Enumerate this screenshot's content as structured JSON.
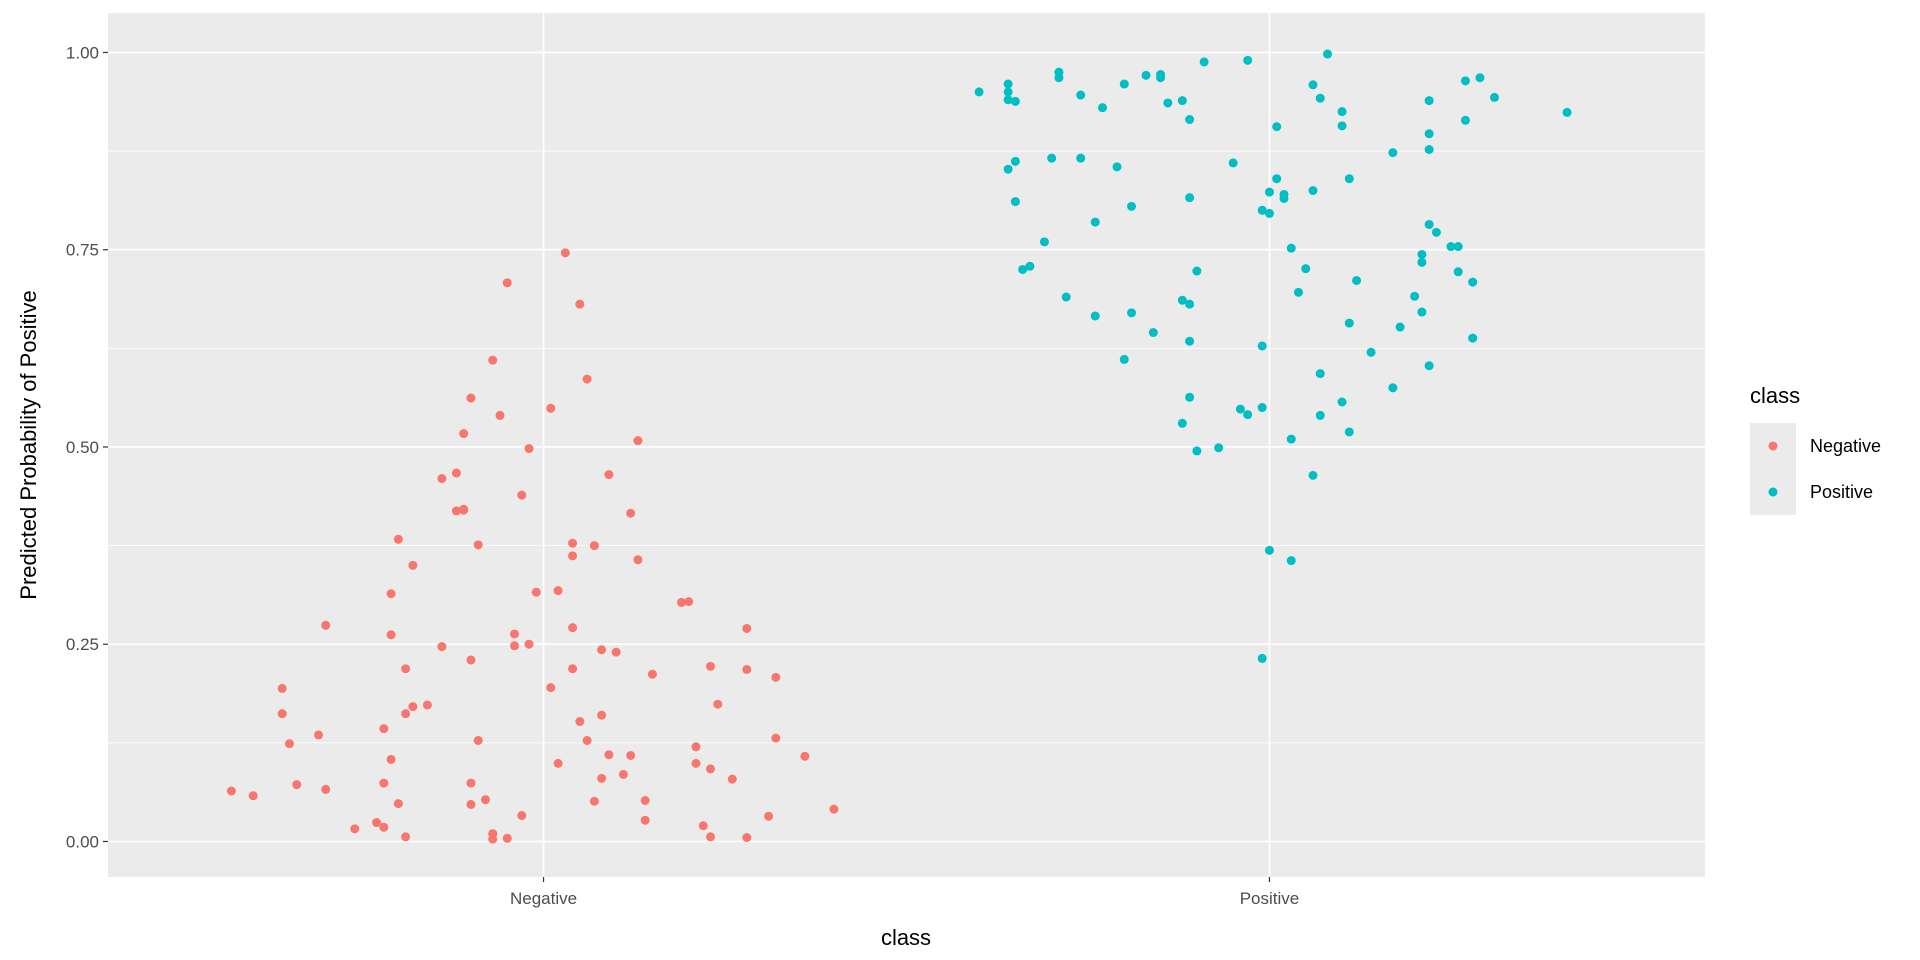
{
  "colors": {
    "panel_background": "#EBEBEB",
    "grid_major": "#FFFFFF",
    "Negative": "#F8766D",
    "Positive": "#00BFC4"
  },
  "chart_data": {
    "type": "scatter",
    "geom": "jitter",
    "xlabel": "class",
    "ylabel": "Predicted Probability of Positive",
    "categories": [
      "Negative",
      "Positive"
    ],
    "ylim": [
      -0.045,
      1.05
    ],
    "y_ticks": [
      "0.00",
      "0.25",
      "0.50",
      "0.75",
      "1.00"
    ],
    "grid": true,
    "legend": {
      "title": "class",
      "position": "right",
      "entries": [
        "Negative",
        "Positive"
      ]
    },
    "series": [
      {
        "name": "Negative",
        "points": [
          [
            0.57,
            0.064
          ],
          [
            0.6,
            0.058
          ],
          [
            0.64,
            0.194
          ],
          [
            0.64,
            0.162
          ],
          [
            0.65,
            0.124
          ],
          [
            0.66,
            0.072
          ],
          [
            0.69,
            0.135
          ],
          [
            0.7,
            0.066
          ],
          [
            0.7,
            0.274
          ],
          [
            0.74,
            0.016
          ],
          [
            0.77,
            0.024
          ],
          [
            0.78,
            0.074
          ],
          [
            0.78,
            0.143
          ],
          [
            0.78,
            0.018
          ],
          [
            0.79,
            0.314
          ],
          [
            0.79,
            0.104
          ],
          [
            0.79,
            0.262
          ],
          [
            0.8,
            0.048
          ],
          [
            0.8,
            0.383
          ],
          [
            0.81,
            0.219
          ],
          [
            0.81,
            0.162
          ],
          [
            0.81,
            0.006
          ],
          [
            0.82,
            0.171
          ],
          [
            0.82,
            0.35
          ],
          [
            0.84,
            0.173
          ],
          [
            0.86,
            0.46
          ],
          [
            0.86,
            0.247
          ],
          [
            0.88,
            0.419
          ],
          [
            0.88,
            0.467
          ],
          [
            0.89,
            0.421
          ],
          [
            0.89,
            0.42
          ],
          [
            0.89,
            0.517
          ],
          [
            0.9,
            0.23
          ],
          [
            0.9,
            0.074
          ],
          [
            0.9,
            0.047
          ],
          [
            0.9,
            0.562
          ],
          [
            0.91,
            0.128
          ],
          [
            0.91,
            0.376
          ],
          [
            0.92,
            0.053
          ],
          [
            0.93,
            0.61
          ],
          [
            0.93,
            0.01
          ],
          [
            0.93,
            0.003
          ],
          [
            0.94,
            0.54
          ],
          [
            0.95,
            0.708
          ],
          [
            0.95,
            0.004
          ],
          [
            0.96,
            0.248
          ],
          [
            0.96,
            0.263
          ],
          [
            0.97,
            0.439
          ],
          [
            0.97,
            0.033
          ],
          [
            0.98,
            0.498
          ],
          [
            0.98,
            0.25
          ],
          [
            0.99,
            0.316
          ],
          [
            1.01,
            0.195
          ],
          [
            1.01,
            0.549
          ],
          [
            1.02,
            0.099
          ],
          [
            1.02,
            0.318
          ],
          [
            1.03,
            0.746
          ],
          [
            1.04,
            0.378
          ],
          [
            1.04,
            0.362
          ],
          [
            1.04,
            0.219
          ],
          [
            1.04,
            0.271
          ],
          [
            1.05,
            0.681
          ],
          [
            1.05,
            0.152
          ],
          [
            1.06,
            0.586
          ],
          [
            1.06,
            0.128
          ],
          [
            1.07,
            0.051
          ],
          [
            1.07,
            0.375
          ],
          [
            1.08,
            0.08
          ],
          [
            1.08,
            0.243
          ],
          [
            1.08,
            0.16
          ],
          [
            1.09,
            0.11
          ],
          [
            1.09,
            0.465
          ],
          [
            1.1,
            0.24
          ],
          [
            1.11,
            0.085
          ],
          [
            1.12,
            0.416
          ],
          [
            1.12,
            0.109
          ],
          [
            1.13,
            0.357
          ],
          [
            1.13,
            0.508
          ],
          [
            1.14,
            0.052
          ],
          [
            1.14,
            0.027
          ],
          [
            1.15,
            0.212
          ],
          [
            1.19,
            0.303
          ],
          [
            1.2,
            0.304
          ],
          [
            1.21,
            0.12
          ],
          [
            1.21,
            0.099
          ],
          [
            1.22,
            0.02
          ],
          [
            1.23,
            0.092
          ],
          [
            1.23,
            0.006
          ],
          [
            1.23,
            0.222
          ],
          [
            1.24,
            0.174
          ],
          [
            1.26,
            0.079
          ],
          [
            1.28,
            0.218
          ],
          [
            1.28,
            0.005
          ],
          [
            1.28,
            0.27
          ],
          [
            1.31,
            0.032
          ],
          [
            1.32,
            0.208
          ],
          [
            1.32,
            0.131
          ],
          [
            1.36,
            0.108
          ],
          [
            1.4,
            0.041
          ]
        ]
      },
      {
        "name": "Positive",
        "points": [
          [
            1.6,
            0.95
          ],
          [
            1.64,
            0.96
          ],
          [
            1.64,
            0.95
          ],
          [
            1.64,
            0.94
          ],
          [
            1.64,
            0.852
          ],
          [
            1.65,
            0.862
          ],
          [
            1.65,
            0.938
          ],
          [
            1.65,
            0.811
          ],
          [
            1.66,
            0.725
          ],
          [
            1.67,
            0.729
          ],
          [
            1.69,
            0.76
          ],
          [
            1.7,
            0.866
          ],
          [
            1.71,
            0.968
          ],
          [
            1.71,
            0.975
          ],
          [
            1.72,
            0.69
          ],
          [
            1.74,
            0.946
          ],
          [
            1.74,
            0.866
          ],
          [
            1.76,
            0.785
          ],
          [
            1.76,
            0.666
          ],
          [
            1.77,
            0.93
          ],
          [
            1.79,
            0.855
          ],
          [
            1.8,
            0.96
          ],
          [
            1.8,
            0.611
          ],
          [
            1.81,
            0.805
          ],
          [
            1.81,
            0.67
          ],
          [
            1.83,
            0.971
          ],
          [
            1.84,
            0.645
          ],
          [
            1.85,
            0.972
          ],
          [
            1.85,
            0.968
          ],
          [
            1.86,
            0.936
          ],
          [
            1.88,
            0.939
          ],
          [
            1.88,
            0.686
          ],
          [
            1.88,
            0.53
          ],
          [
            1.89,
            0.915
          ],
          [
            1.89,
            0.816
          ],
          [
            1.89,
            0.681
          ],
          [
            1.89,
            0.634
          ],
          [
            1.89,
            0.563
          ],
          [
            1.9,
            0.495
          ],
          [
            1.9,
            0.723
          ],
          [
            1.91,
            0.988
          ],
          [
            1.93,
            0.499
          ],
          [
            1.95,
            0.86
          ],
          [
            1.96,
            0.548
          ],
          [
            1.97,
            0.541
          ],
          [
            1.97,
            0.99
          ],
          [
            1.99,
            0.628
          ],
          [
            1.99,
            0.8
          ],
          [
            1.99,
            0.55
          ],
          [
            1.99,
            0.232
          ],
          [
            2.0,
            0.796
          ],
          [
            2.0,
            0.369
          ],
          [
            2.0,
            0.823
          ],
          [
            2.01,
            0.906
          ],
          [
            2.01,
            0.84
          ],
          [
            2.02,
            0.815
          ],
          [
            2.02,
            0.82
          ],
          [
            2.03,
            0.51
          ],
          [
            2.03,
            0.752
          ],
          [
            2.03,
            0.356
          ],
          [
            2.04,
            0.696
          ],
          [
            2.05,
            0.726
          ],
          [
            2.06,
            0.825
          ],
          [
            2.06,
            0.464
          ],
          [
            2.06,
            0.959
          ],
          [
            2.07,
            0.942
          ],
          [
            2.07,
            0.593
          ],
          [
            2.07,
            0.54
          ],
          [
            2.08,
            0.998
          ],
          [
            2.1,
            0.925
          ],
          [
            2.1,
            0.907
          ],
          [
            2.1,
            0.557
          ],
          [
            2.11,
            0.84
          ],
          [
            2.11,
            0.519
          ],
          [
            2.11,
            0.657
          ],
          [
            2.12,
            0.711
          ],
          [
            2.14,
            0.62
          ],
          [
            2.17,
            0.873
          ],
          [
            2.17,
            0.575
          ],
          [
            2.18,
            0.652
          ],
          [
            2.2,
            0.691
          ],
          [
            2.21,
            0.744
          ],
          [
            2.21,
            0.734
          ],
          [
            2.21,
            0.671
          ],
          [
            2.22,
            0.939
          ],
          [
            2.22,
            0.877
          ],
          [
            2.22,
            0.897
          ],
          [
            2.22,
            0.782
          ],
          [
            2.22,
            0.603
          ],
          [
            2.23,
            0.772
          ],
          [
            2.25,
            0.754
          ],
          [
            2.26,
            0.754
          ],
          [
            2.26,
            0.722
          ],
          [
            2.27,
            0.914
          ],
          [
            2.27,
            0.964
          ],
          [
            2.28,
            0.638
          ],
          [
            2.28,
            0.709
          ],
          [
            2.29,
            0.968
          ],
          [
            2.31,
            0.943
          ],
          [
            2.41,
            0.924
          ]
        ]
      }
    ]
  }
}
